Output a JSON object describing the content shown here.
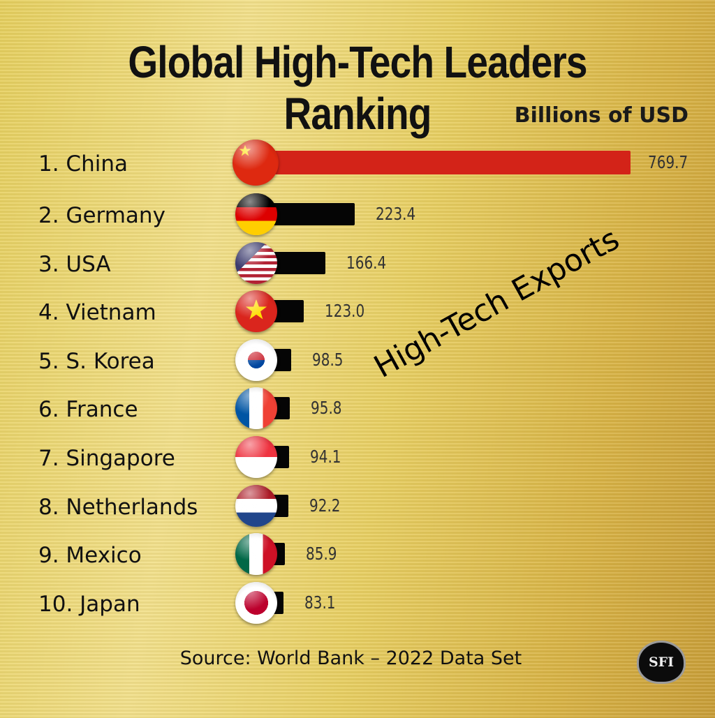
{
  "chart_data": {
    "type": "bar",
    "orientation": "horizontal",
    "title": "Global High-Tech Leaders Ranking",
    "unit_label": "Billions of USD",
    "watermark": "High-Tech Exports",
    "source": "Source: World Bank – 2022 Data Set",
    "logo": "SFI",
    "categories": [
      "1. China",
      "2. Germany",
      "3. USA",
      "4. Vietnam",
      "5. S. Korea",
      "6. France",
      "7. Singapore",
      "8. Netherlands",
      "9. Mexico",
      "10. Japan"
    ],
    "values": [
      769.7,
      223.4,
      166.4,
      123.0,
      98.5,
      95.8,
      94.1,
      92.2,
      85.9,
      83.1
    ],
    "value_labels": [
      "769.7",
      "223.4",
      "166.4",
      "123.0",
      "98.5",
      "95.8",
      "94.1",
      "92.2",
      "85.9",
      "83.1"
    ],
    "flags": [
      "china",
      "germany",
      "usa",
      "vietnam",
      "south-korea",
      "france",
      "singapore",
      "netherlands",
      "mexico",
      "japan"
    ],
    "bar_colors": {
      "highlight": "#d32318",
      "default": "#050505"
    },
    "grid": false,
    "legend": "none"
  }
}
